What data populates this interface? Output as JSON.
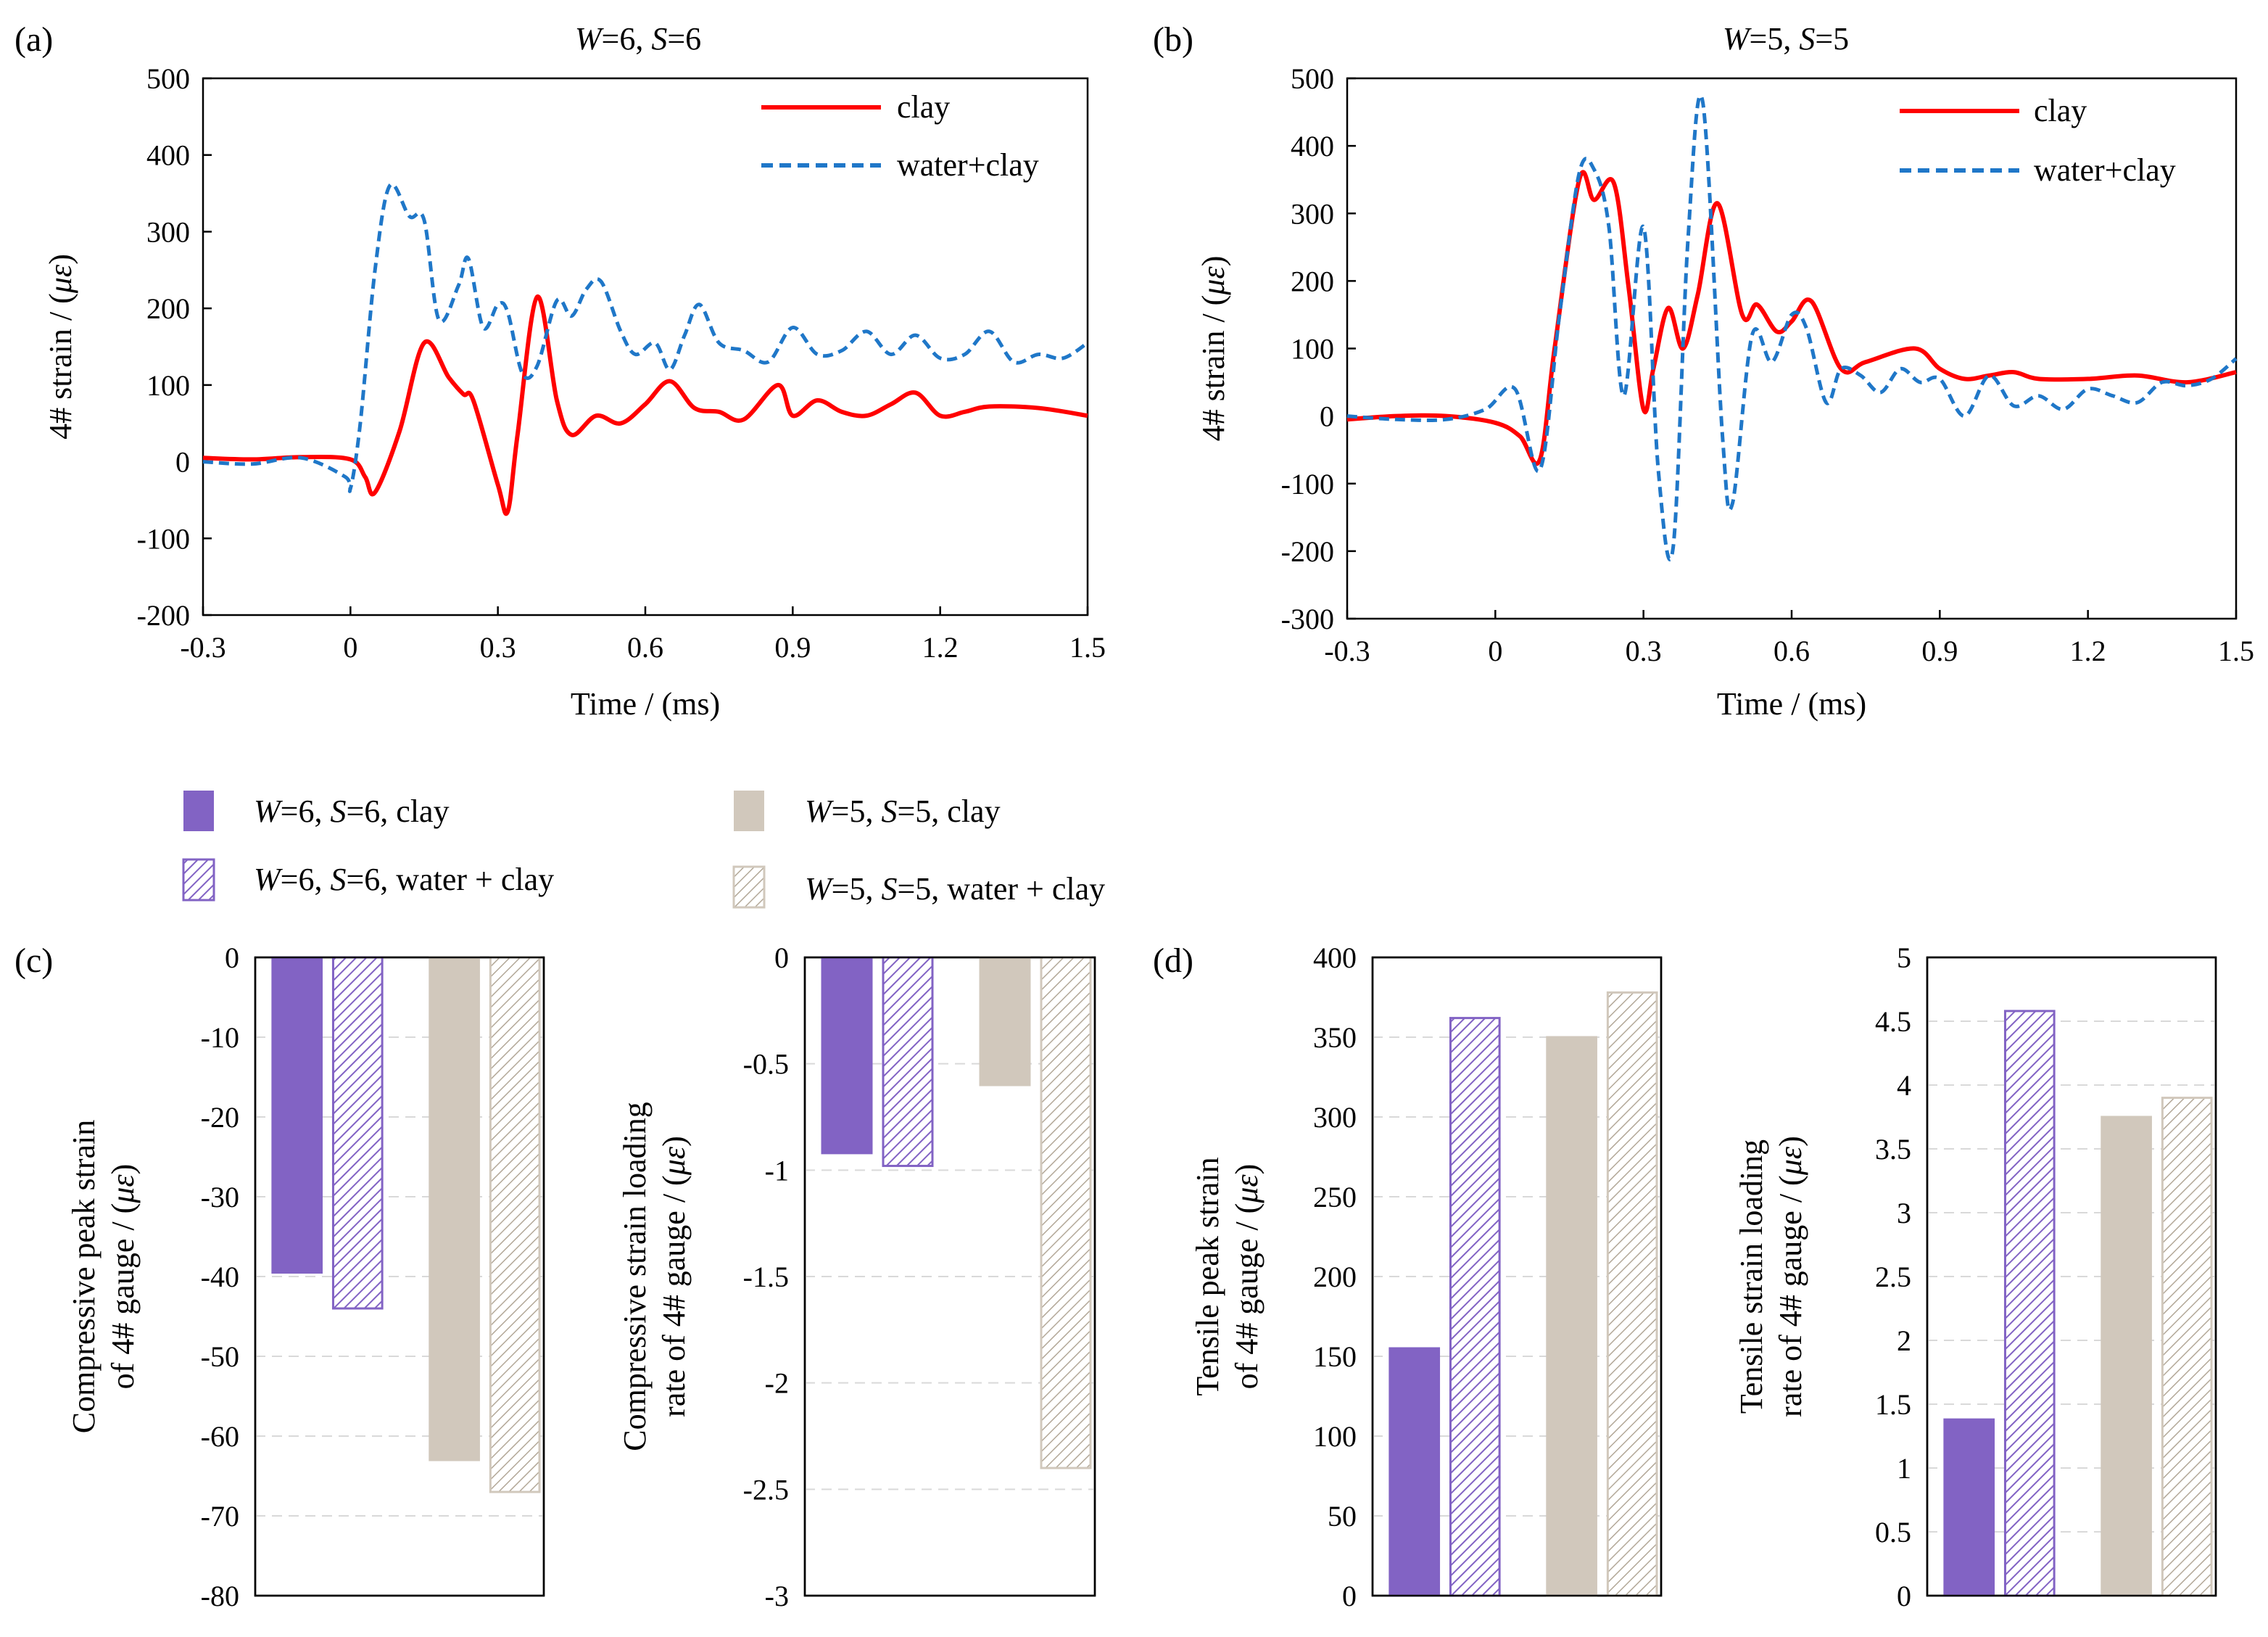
{
  "colors": {
    "clay_line": "#ff0000",
    "water_clay_line": "#1f77c8",
    "purple": "#8263c4",
    "beige": "#d1c8bc",
    "beige_hatch": "#a89c8e",
    "grid": "#d9d9d9"
  },
  "series_labels": {
    "clay": "clay",
    "water_clay": "water+clay"
  },
  "bar_legend": [
    "W=6, S=6, clay",
    "W=6, S=6, water + clay",
    "W=5, S=5, clay",
    "W=5, S=5, water + clay"
  ],
  "panel_labels": {
    "a": "(a)",
    "b": "(b)",
    "c": "(c)",
    "d": "(d)"
  },
  "chart_data": [
    {
      "id": "a",
      "type": "line",
      "title": "W=6, S=6",
      "xlabel": "Time / (ms)",
      "ylabel": "4# strain / (με)",
      "xlim": [
        -0.3,
        1.5
      ],
      "ylim": [
        -200,
        500
      ],
      "xticks": [
        "-0.3",
        "0",
        "0.3",
        "0.6",
        "0.9",
        "1.2",
        "1.5"
      ],
      "yticks": [
        "-200",
        "-100",
        "0",
        "100",
        "200",
        "300",
        "400",
        "500"
      ],
      "series": [
        {
          "name": "clay",
          "style": "solid",
          "x": [
            -0.3,
            -0.2,
            -0.1,
            0,
            0.03,
            0.05,
            0.1,
            0.15,
            0.2,
            0.23,
            0.25,
            0.3,
            0.32,
            0.34,
            0.38,
            0.42,
            0.45,
            0.5,
            0.55,
            0.6,
            0.65,
            0.7,
            0.75,
            0.8,
            0.87,
            0.9,
            0.95,
            1.0,
            1.05,
            1.1,
            1.15,
            1.2,
            1.25,
            1.3,
            1.4,
            1.5
          ],
          "y": [
            5,
            3,
            6,
            3,
            -20,
            -40,
            40,
            155,
            110,
            88,
            80,
            -30,
            -65,
            35,
            215,
            80,
            35,
            60,
            50,
            75,
            105,
            70,
            65,
            55,
            100,
            60,
            80,
            65,
            60,
            75,
            90,
            60,
            65,
            72,
            70,
            60
          ]
        },
        {
          "name": "water+clay",
          "style": "dashed",
          "x": [
            -0.3,
            -0.2,
            -0.1,
            -0.01,
            0,
            0.02,
            0.05,
            0.08,
            0.12,
            0.15,
            0.18,
            0.22,
            0.24,
            0.27,
            0.3,
            0.32,
            0.35,
            0.38,
            0.42,
            0.45,
            0.48,
            0.51,
            0.55,
            0.58,
            0.62,
            0.65,
            0.68,
            0.71,
            0.75,
            0.8,
            0.85,
            0.9,
            0.95,
            1.0,
            1.05,
            1.1,
            1.15,
            1.2,
            1.25,
            1.3,
            1.35,
            1.4,
            1.45,
            1.5
          ],
          "y": [
            0,
            -3,
            5,
            -20,
            -35,
            50,
            250,
            360,
            320,
            315,
            185,
            230,
            265,
            175,
            205,
            195,
            115,
            125,
            210,
            190,
            225,
            235,
            170,
            140,
            155,
            120,
            165,
            205,
            155,
            145,
            130,
            175,
            140,
            145,
            170,
            140,
            165,
            135,
            140,
            170,
            130,
            140,
            135,
            155
          ]
        }
      ]
    },
    {
      "id": "b",
      "type": "line",
      "title": "W=5, S=5",
      "xlabel": "Time / (ms)",
      "ylabel": "4# strain / (με)",
      "xlim": [
        -0.3,
        1.5
      ],
      "ylim": [
        -300,
        500
      ],
      "xticks": [
        "-0.3",
        "0",
        "0.3",
        "0.6",
        "0.9",
        "1.2",
        "1.5"
      ],
      "yticks": [
        "-300",
        "-200",
        "-100",
        "0",
        "100",
        "200",
        "300",
        "400",
        "500"
      ],
      "series": [
        {
          "name": "clay",
          "style": "solid",
          "x": [
            -0.3,
            -0.2,
            -0.1,
            0,
            0.05,
            0.09,
            0.12,
            0.17,
            0.2,
            0.24,
            0.27,
            0.3,
            0.32,
            0.35,
            0.38,
            0.41,
            0.45,
            0.5,
            0.53,
            0.57,
            0.6,
            0.64,
            0.7,
            0.75,
            0.85,
            0.9,
            0.95,
            1.0,
            1.05,
            1.1,
            1.2,
            1.3,
            1.4,
            1.5
          ],
          "y": [
            -5,
            0,
            0,
            -10,
            -30,
            -65,
            100,
            350,
            320,
            345,
            190,
            10,
            70,
            160,
            100,
            180,
            315,
            150,
            165,
            125,
            140,
            170,
            70,
            80,
            100,
            70,
            55,
            60,
            65,
            55,
            55,
            60,
            50,
            65
          ]
        },
        {
          "name": "water+clay",
          "style": "dashed",
          "x": [
            -0.3,
            -0.2,
            -0.1,
            -0.02,
            0.04,
            0.09,
            0.13,
            0.17,
            0.2,
            0.23,
            0.26,
            0.3,
            0.33,
            0.36,
            0.39,
            0.42,
            0.46,
            0.48,
            0.52,
            0.56,
            0.6,
            0.63,
            0.67,
            0.7,
            0.74,
            0.78,
            0.82,
            0.86,
            0.9,
            0.95,
            1.0,
            1.05,
            1.1,
            1.15,
            1.2,
            1.25,
            1.3,
            1.35,
            1.4,
            1.45,
            1.5
          ],
          "y": [
            0,
            -5,
            -5,
            10,
            40,
            -80,
            150,
            360,
            365,
            280,
            30,
            280,
            -80,
            -195,
            260,
            465,
            -30,
            -130,
            120,
            80,
            150,
            130,
            20,
            70,
            60,
            35,
            70,
            50,
            55,
            0,
            60,
            15,
            30,
            10,
            40,
            30,
            20,
            50,
            45,
            55,
            85
          ]
        }
      ]
    },
    {
      "id": "c1",
      "type": "bar",
      "ylabel": "Compressive peak strain of 4# gauge / (με)",
      "ylim": [
        -80,
        0
      ],
      "yticks": [
        "0",
        "-10",
        "-20",
        "-30",
        "-40",
        "-50",
        "-60",
        "-70",
        "-80"
      ],
      "values": [
        -39.5,
        -44,
        -63,
        -67
      ]
    },
    {
      "id": "c2",
      "type": "bar",
      "ylabel": "Compressive strain loading rate of 4# gauge / (με)",
      "ylim": [
        -3,
        0
      ],
      "yticks": [
        "0",
        "-0.5",
        "-1",
        "-1.5",
        "-2",
        "-2.5",
        "-3"
      ],
      "values": [
        -0.92,
        -0.98,
        -0.6,
        -2.4
      ]
    },
    {
      "id": "d1",
      "type": "bar",
      "ylabel": "Tensile peak strain of 4# gauge / (με)",
      "ylim": [
        0,
        400
      ],
      "yticks": [
        "0",
        "50",
        "100",
        "150",
        "200",
        "250",
        "300",
        "350",
        "400"
      ],
      "values": [
        155,
        362,
        350,
        378
      ]
    },
    {
      "id": "d2",
      "type": "bar",
      "ylabel": "Tensile strain loading rate of 4# gauge / (με)",
      "ylim": [
        0,
        5
      ],
      "yticks": [
        "0",
        "0.5",
        "1",
        "1.5",
        "2",
        "2.5",
        "3",
        "3.5",
        "4",
        "4.5",
        "5"
      ],
      "values": [
        1.38,
        4.58,
        3.75,
        3.9
      ]
    }
  ]
}
